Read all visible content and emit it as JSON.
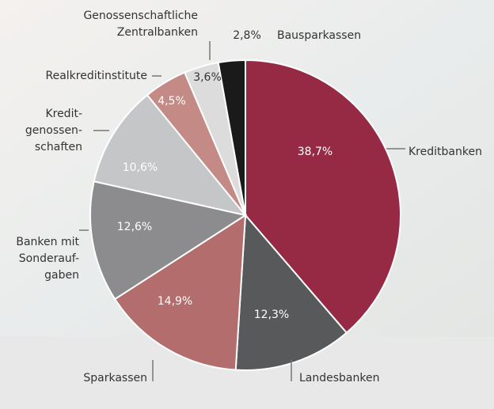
{
  "chart_data": {
    "type": "pie",
    "categories": [
      "Kreditbanken",
      "Landesbanken",
      "Sparkassen",
      "Banken mit\nSonderauf-\ngaben",
      "Kredit-\ngenossen-\nschaften",
      "Realkreditinstitute",
      "Genossenschaftliche\nZentralbanken",
      "Bausparkassen"
    ],
    "values": [
      38.7,
      12.3,
      14.9,
      12.6,
      10.6,
      4.5,
      3.6,
      2.8
    ],
    "value_labels": [
      "38,7%",
      "12,3%",
      "14,9%",
      "12,6%",
      "10,6%",
      "4,5%",
      "3,6%",
      "2,8%"
    ],
    "colors": [
      "#962a44",
      "#58595b",
      "#b36d6d",
      "#8c8c8e",
      "#c5c6c8",
      "#c48a86",
      "#dcdcdc",
      "#1a1a1a"
    ]
  }
}
